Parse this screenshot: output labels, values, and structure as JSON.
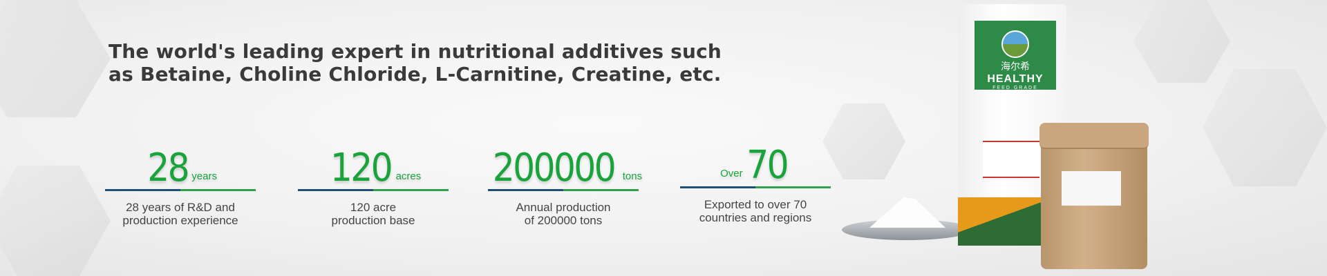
{
  "headline": "The world's leading expert in nutritional additives such as Betaine, Choline Chloride, L-Carnitine, Creatine, etc.",
  "stats": [
    {
      "prefix": "",
      "value": "28",
      "unit": "years",
      "desc_line1": "28 years of R&D and",
      "desc_line2": "production experience"
    },
    {
      "prefix": "",
      "value": "120",
      "unit": "acres",
      "desc_line1": "120 acre",
      "desc_line2": "production base"
    },
    {
      "prefix": "",
      "value": "200000",
      "unit": "tons",
      "desc_line1": "Annual production",
      "desc_line2": "of 200000 tons"
    },
    {
      "prefix": "Over",
      "value": "70",
      "unit": "",
      "desc_line1": "Exported to over 70",
      "desc_line2": "countries and regions"
    }
  ],
  "product": {
    "brand_cn": "海尔希",
    "brand": "HEALTHY",
    "grade": "FEED GRADE"
  },
  "colors": {
    "accent_green": "#19a33a",
    "bar_blue": "#1e4f78",
    "bar_green": "#2ea24a"
  }
}
